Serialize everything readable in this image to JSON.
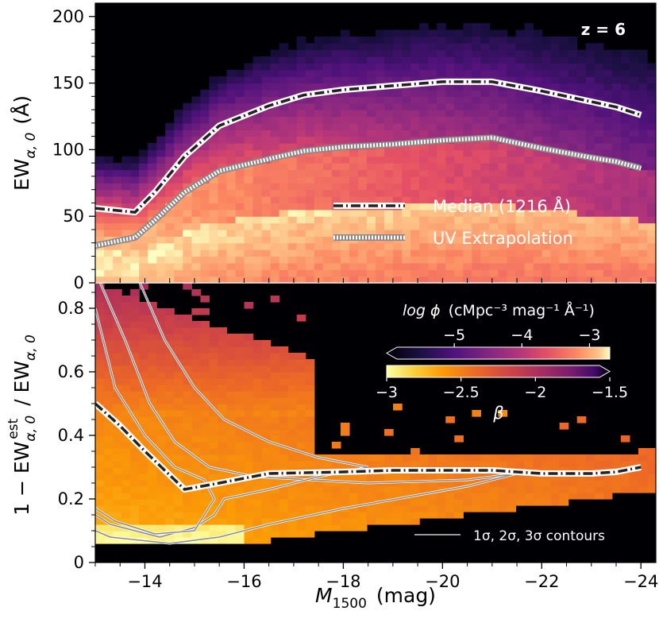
{
  "chart_data": [
    {
      "type": "heatmap",
      "panel": "top",
      "annotation": "z = 6",
      "xlim": [
        -13.0,
        -24.3
      ],
      "ylim": [
        0,
        210
      ],
      "yticks": [
        0,
        50,
        100,
        150,
        200
      ],
      "ylabel_main": "EW",
      "ylabel_sub": "α, 0",
      "ylabel_unit": "(Å)",
      "series": [
        {
          "name": "Median (1216 Å)",
          "style": "dash-dot",
          "x": [
            -13.0,
            -13.8,
            -14.2,
            -14.8,
            -15.5,
            -16.5,
            -17.2,
            -18.0,
            -19.0,
            -20.0,
            -21.0,
            -22.0,
            -23.0,
            -23.5,
            -24.0
          ],
          "y": [
            56,
            53,
            68,
            95,
            118,
            133,
            141,
            145,
            148,
            151,
            151,
            144,
            136,
            132,
            126
          ]
        },
        {
          "name": "UV Extrapolation",
          "style": "dotted",
          "x": [
            -13.0,
            -13.8,
            -14.2,
            -14.8,
            -15.5,
            -16.5,
            -17.2,
            -18.0,
            -19.0,
            -20.0,
            -21.0,
            -22.0,
            -23.0,
            -23.5,
            -24.0
          ],
          "y": [
            28,
            34,
            47,
            68,
            84,
            93,
            99,
            102,
            104,
            107,
            109,
            101,
            94,
            91,
            86
          ]
        }
      ],
      "colorbar": {
        "label_prefix": "log ϕ",
        "label_units": "(cMpc⁻³ mag⁻¹ Å⁻¹)",
        "ticks": [
          "−5",
          "−4",
          "−3"
        ],
        "tick_values": [
          -5,
          -4,
          -3
        ],
        "range": [
          -6.0,
          -2.7
        ],
        "cmap": "magma"
      }
    },
    {
      "type": "heatmap",
      "panel": "bottom",
      "xlim": [
        -13.0,
        -24.3
      ],
      "ylim": [
        0,
        0.88
      ],
      "yticks": [
        0,
        0.2,
        0.4,
        0.6,
        0.8
      ],
      "ytick_labels": [
        "0",
        "0.2",
        "0.4",
        "0.6",
        "0.8"
      ],
      "ylabel": "1 − EW_α,0^est / EW_α,0",
      "xlabel": "M1500 (mag)",
      "xticks": [
        -14,
        -16,
        -18,
        -20,
        -22,
        -24
      ],
      "xtick_labels": [
        "−14",
        "−16",
        "−18",
        "−20",
        "−22",
        "−24"
      ],
      "series": [
        {
          "name": "Median",
          "style": "dash-dot",
          "x": [
            -13.0,
            -13.5,
            -14.0,
            -14.8,
            -15.5,
            -16.5,
            -18.0,
            -19.0,
            -20.0,
            -21.0,
            -22.0,
            -23.0,
            -23.5,
            -24.0
          ],
          "y": [
            0.5,
            0.43,
            0.35,
            0.23,
            0.25,
            0.28,
            0.285,
            0.29,
            0.29,
            0.29,
            0.28,
            0.28,
            0.285,
            0.3
          ]
        }
      ],
      "contour_legend": "1σ, 2σ, 3σ  contours",
      "colorbar": {
        "label": "β",
        "ticks": [
          "−3",
          "−2.5",
          "−2",
          "−1.5"
        ],
        "tick_values": [
          -3,
          -2.5,
          -2,
          -1.5
        ],
        "range": [
          -3.0,
          -1.5
        ],
        "cmap": "inferno_r"
      }
    }
  ],
  "legend": {
    "median_label": "Median  (1216 Å)",
    "uv_label": "UV  Extrapolation"
  }
}
